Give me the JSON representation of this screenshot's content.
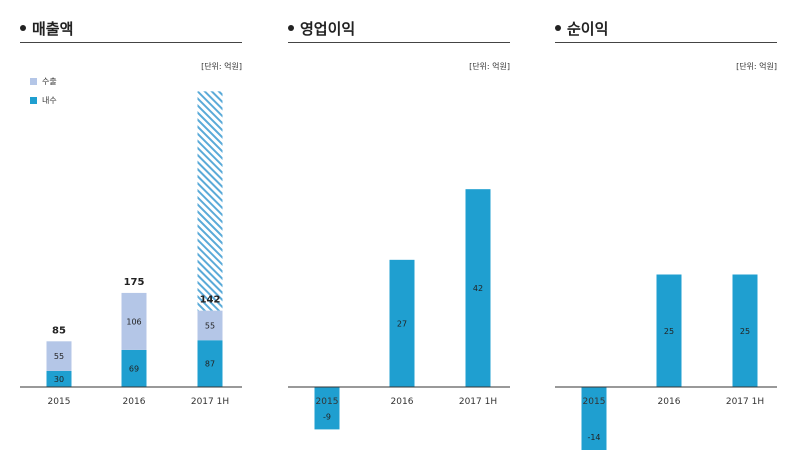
{
  "colors": {
    "export": "#b4c6e7",
    "domestic": "#1f9fd0",
    "axis": "#333333"
  },
  "chart_data": [
    {
      "type": "bar",
      "title": "매출액",
      "unit": "[단위: 억원]",
      "categories": [
        "2015",
        "2016",
        "2017 1H"
      ],
      "stacked": true,
      "series": [
        {
          "name": "내수",
          "values": [
            30,
            69,
            87
          ],
          "color": "#1f9fd0"
        },
        {
          "name": "수출",
          "values": [
            55,
            106,
            55
          ],
          "color": "#b4c6e7"
        }
      ],
      "totals": [
        "85",
        "175",
        "142"
      ],
      "extra_hatched_top": {
        "category": "2017 1H",
        "top_value": 550
      },
      "legend": [
        "수출",
        "내수"
      ],
      "ylim": [
        0,
        550
      ]
    },
    {
      "type": "bar",
      "title": "영업이익",
      "unit": "[단위: 억원]",
      "categories": [
        "2015",
        "2016",
        "2017 1H"
      ],
      "series": [
        {
          "values": [
            -9,
            27,
            42
          ],
          "color": "#1f9fd0"
        }
      ],
      "ylim": [
        -10,
        42
      ]
    },
    {
      "type": "bar",
      "title": "순이익",
      "unit": "[단위: 억원]",
      "categories": [
        "2015",
        "2016",
        "2017 1H"
      ],
      "series": [
        {
          "values": [
            -14,
            25,
            25
          ],
          "color": "#1f9fd0"
        }
      ],
      "ylim": [
        -14,
        31
      ]
    }
  ]
}
